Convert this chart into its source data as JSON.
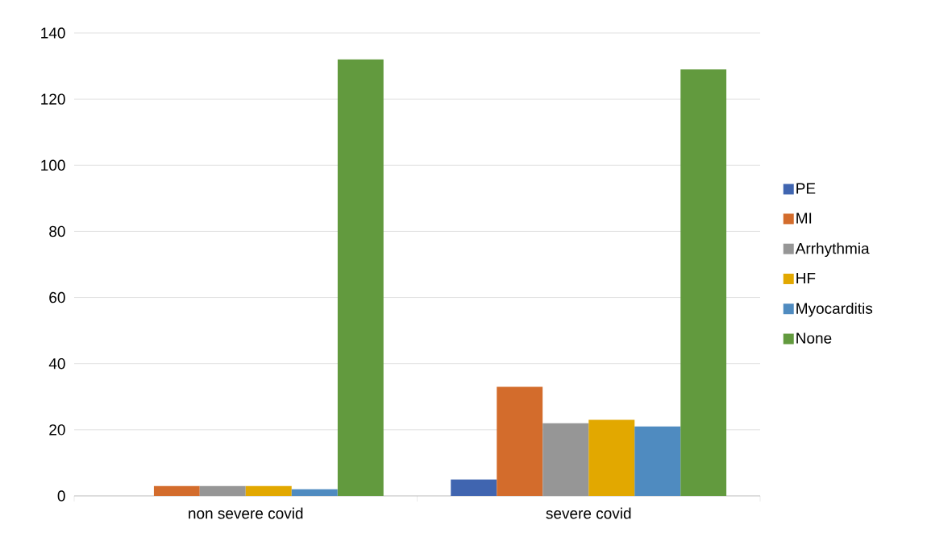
{
  "chart_data": {
    "type": "bar",
    "categories": [
      "non severe covid",
      "severe covid"
    ],
    "series": [
      {
        "name": "PE",
        "color": "#4065b0",
        "values": [
          0,
          5
        ]
      },
      {
        "name": "MI",
        "color": "#d36c2c",
        "values": [
          3,
          33
        ]
      },
      {
        "name": "Arrhythmia",
        "color": "#969696",
        "values": [
          3,
          22
        ]
      },
      {
        "name": "HF",
        "color": "#e2a800",
        "values": [
          3,
          23
        ]
      },
      {
        "name": "Myocarditis",
        "color": "#4f8bc0",
        "values": [
          2,
          21
        ]
      },
      {
        "name": "None",
        "color": "#629a3e",
        "values": [
          132,
          129
        ]
      }
    ],
    "ylim": [
      0,
      140
    ],
    "yticks": [
      0,
      20,
      40,
      60,
      80,
      100,
      120,
      140
    ],
    "grid": "y",
    "legend": "right"
  }
}
